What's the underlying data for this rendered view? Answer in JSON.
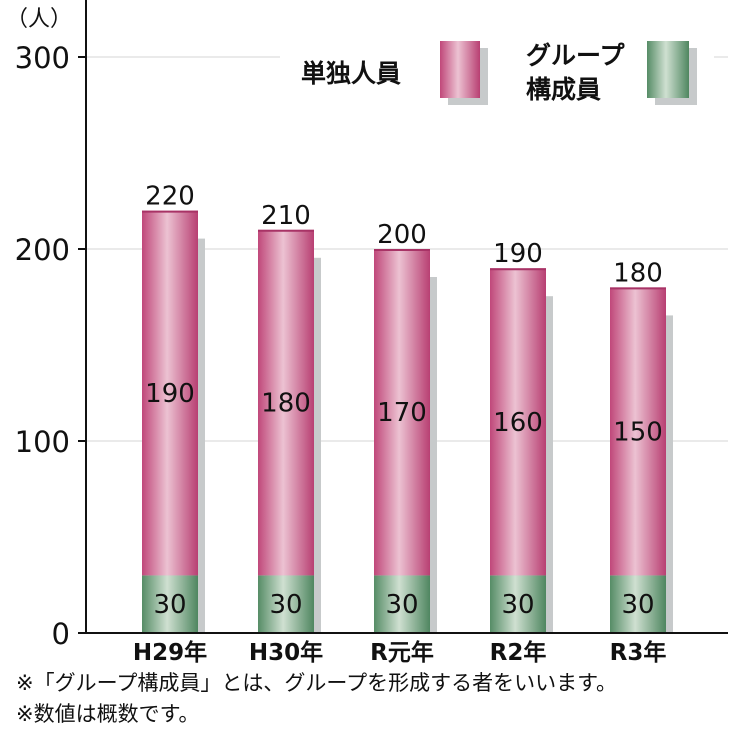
{
  "chart_data": {
    "type": "bar",
    "stacked": true,
    "unit_label": "（人）",
    "categories": [
      "H29年",
      "H30年",
      "R元年",
      "R2年",
      "R3年"
    ],
    "series": [
      {
        "name": "グループ構成員",
        "values": [
          30,
          30,
          30,
          30,
          30
        ]
      },
      {
        "name": "単独人員",
        "values": [
          190,
          180,
          170,
          160,
          150
        ]
      }
    ],
    "totals": [
      220,
      210,
      200,
      190,
      180
    ],
    "ylim": [
      0,
      300
    ],
    "yticks": [
      0,
      100,
      200,
      300
    ],
    "grid": true,
    "legend_position": "top-right",
    "colors": {
      "単独人員": "#c8507f",
      "グループ構成員": "#5e946d",
      "shadow": "#c7cacb",
      "grid": "#d4d4d4"
    }
  },
  "legend": {
    "solo_label": "単独人員",
    "group_label_line1": "グループ",
    "group_label_line2": "構成員"
  },
  "notes": [
    "※「グループ構成員」とは、グループを形成する者をいいます。",
    "※数値は概数です。"
  ]
}
